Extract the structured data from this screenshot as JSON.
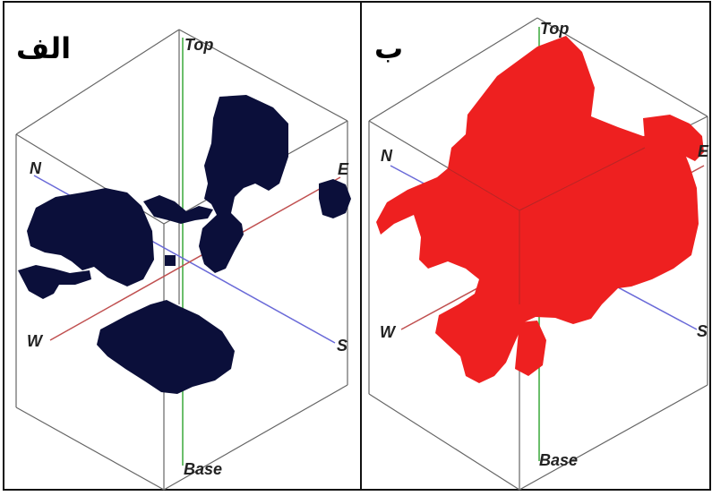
{
  "panels": [
    {
      "label": "الف",
      "body_color": "#0b0f3a",
      "axes": {
        "top": "Top",
        "base": "Base",
        "north": "N",
        "south": "S",
        "east": "E",
        "west": "W"
      }
    },
    {
      "label": "ب",
      "body_color": "#ee2020",
      "axes": {
        "top": "Top",
        "base": "Base",
        "north": "N",
        "south": "S",
        "east": "E",
        "west": "W"
      }
    }
  ],
  "colors": {
    "frame": "#111111",
    "box_edge": "#666666",
    "vertical_axis": "#3aa83a",
    "north_south_axis": "#6a6ad8",
    "east_west_axis": "#c05050"
  }
}
